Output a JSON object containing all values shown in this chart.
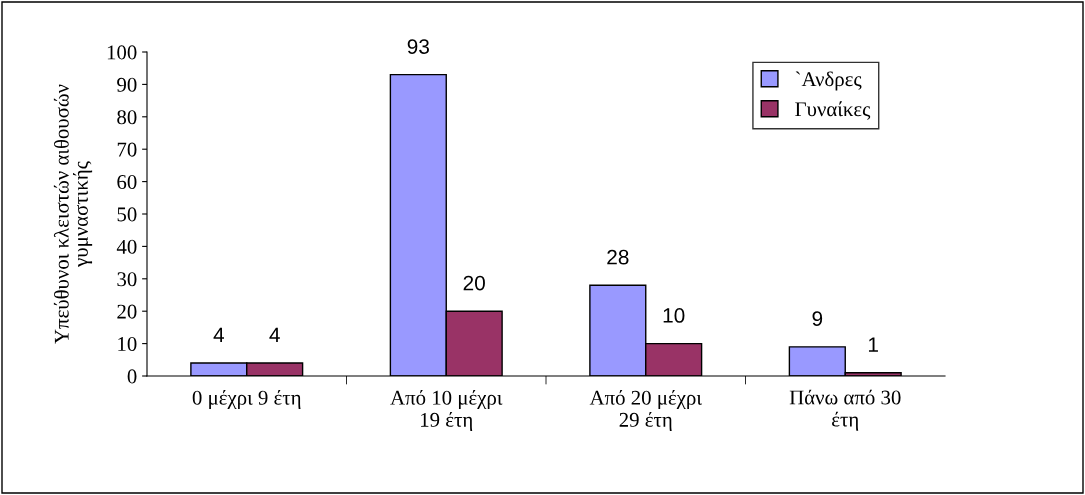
{
  "chart_data": {
    "type": "bar",
    "ylabel": "Υπεύθυνοι κλειστών αιθουσών\nγυμναστικής",
    "categories": [
      "0 μέχρι 9 έτη",
      "Από 10 μέχρι\n19 έτη",
      "Από 20 μέχρι\n29 έτη",
      "Πάνω από 30\nέτη"
    ],
    "series": [
      {
        "name": "`Ανδρες",
        "color": "#9999ff",
        "values": [
          4,
          93,
          28,
          9
        ]
      },
      {
        "name": "Γυναίκες",
        "color": "#993366",
        "values": [
          4,
          20,
          10,
          1
        ]
      }
    ],
    "ylim": [
      0,
      100
    ],
    "yticks": [
      0,
      10,
      20,
      30,
      40,
      50,
      60,
      70,
      80,
      90,
      100
    ],
    "data_labels": true,
    "legend": "top right",
    "grid": false
  }
}
